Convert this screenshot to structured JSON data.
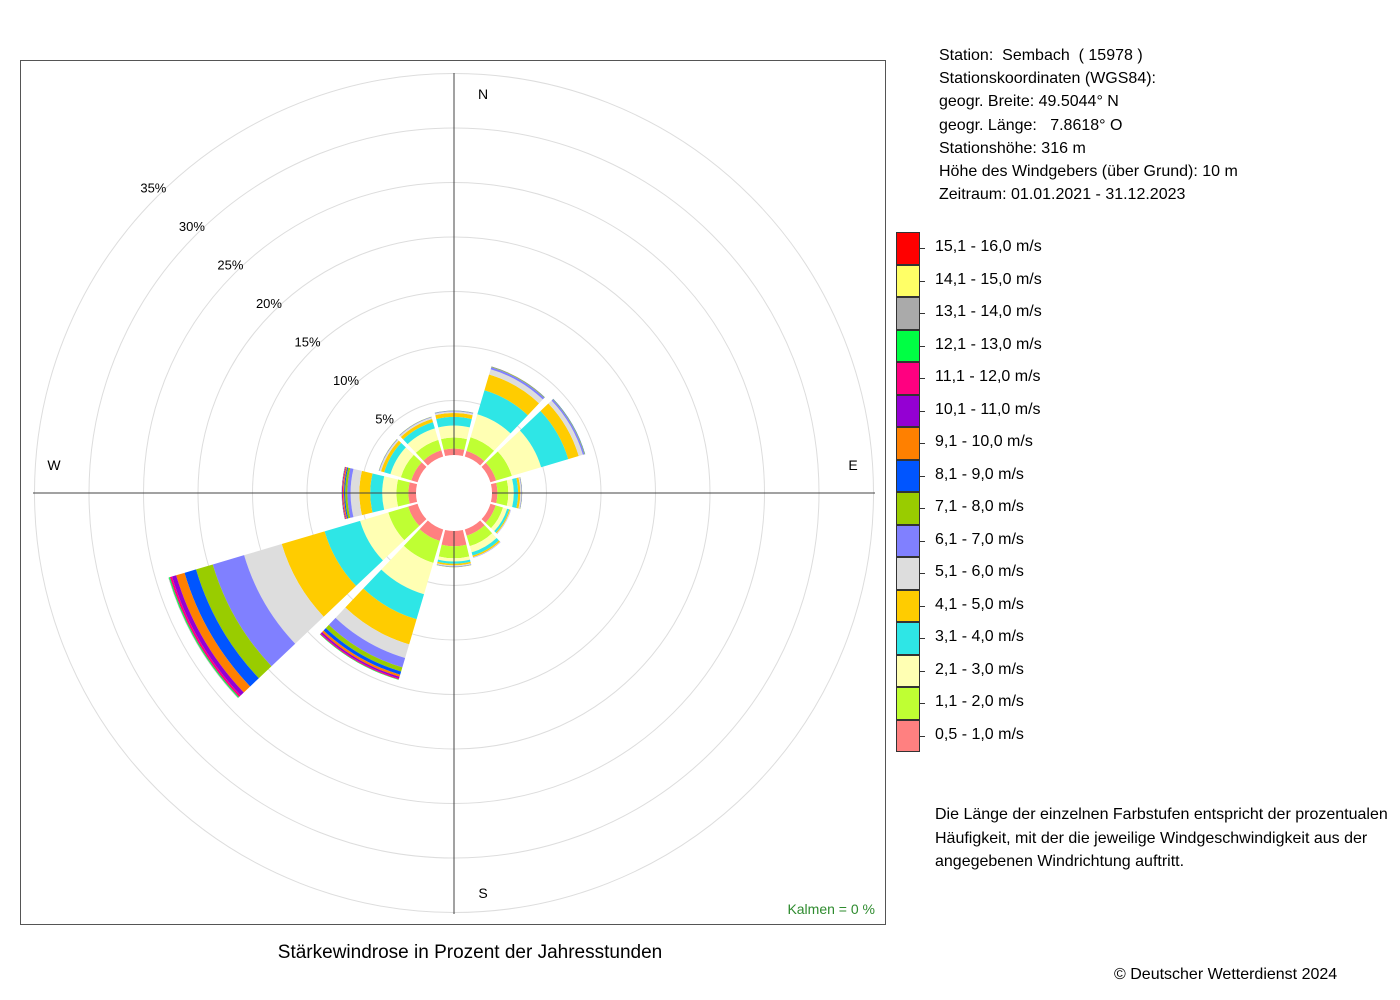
{
  "station": {
    "lines": [
      "Station:  Sembach  ( 15978 )",
      "Stationskoordinaten (WGS84):",
      "geogr. Breite: 49.5044° N",
      "geogr. Länge:   7.8618° O",
      "Stationshöhe: 316 m",
      "Höhe des Windgebers (über Grund): 10 m",
      "Zeitraum: 01.01.2021 - 31.12.2023"
    ]
  },
  "title": "Stärkewindrose in Prozent der Jahresstunden",
  "kalmen": "Kalmen  =  0 %",
  "note": "Die Länge der einzelnen Farbstufen entspricht der prozentualen Häufigkeit, mit der die jeweilige Windgeschwindigkeit aus der angegebenen Windrichtung auftritt.",
  "copyright": "© Deutscher Wetterdienst  2024",
  "legend": [
    {
      "label": "15,1 - 16,0 m/s",
      "color": "#ff0000"
    },
    {
      "label": "14,1 - 15,0 m/s",
      "color": "#ffff66"
    },
    {
      "label": "13,1 - 14,0 m/s",
      "color": "#aaaaaa"
    },
    {
      "label": "12,1 - 13,0 m/s",
      "color": "#00ff44"
    },
    {
      "label": "11,1 - 12,0 m/s",
      "color": "#ff0080"
    },
    {
      "label": "10,1 - 11,0 m/s",
      "color": "#9400d3"
    },
    {
      "label": "9,1 - 10,0 m/s",
      "color": "#ff8000"
    },
    {
      "label": "8,1 - 9,0 m/s",
      "color": "#0055ff"
    },
    {
      "label": "7,1 - 8,0 m/s",
      "color": "#99cc00"
    },
    {
      "label": "6,1 - 7,0 m/s",
      "color": "#8080ff"
    },
    {
      "label": "5,1 - 6,0 m/s",
      "color": "#dddddd"
    },
    {
      "label": "4,1 - 5,0 m/s",
      "color": "#ffcc00"
    },
    {
      "label": "3,1 - 4,0 m/s",
      "color": "#2ee6e6"
    },
    {
      "label": "2,1 - 3,0 m/s",
      "color": "#ffffb3"
    },
    {
      "label": "1,1 - 2,0 m/s",
      "color": "#bfff33"
    },
    {
      "label": "0,5 - 1,0 m/s",
      "color": "#ff8080"
    }
  ],
  "chart_data": {
    "type": "windrose",
    "title": "Stärkewindrose in Prozent der Jahresstunden",
    "radial_ticks": [
      "5%",
      "10%",
      "15%",
      "20%",
      "25%",
      "30%",
      "35%"
    ],
    "radial_max": 35,
    "directions": [
      "N",
      "E",
      "S",
      "W"
    ],
    "sector_directions_deg": [
      0,
      30,
      60,
      90,
      120,
      150,
      180,
      210,
      240,
      270,
      300,
      330
    ],
    "speed_classes": [
      "0,5 - 1,0 m/s",
      "1,1 - 2,0 m/s",
      "2,1 - 3,0 m/s",
      "3,1 - 4,0 m/s",
      "4,1 - 5,0 m/s",
      "5,1 - 6,0 m/s",
      "6,1 - 7,0 m/s",
      "7,1 - 8,0 m/s",
      "8,1 - 9,0 m/s",
      "9,1 - 10,0 m/s",
      "10,1 - 11,0 m/s",
      "11,1 - 12,0 m/s",
      "12,1 - 13,0 m/s",
      "13,1 - 14,0 m/s",
      "14,1 - 15,0 m/s",
      "15,1 - 16,0 m/s"
    ],
    "sectors": [
      {
        "dir": 0,
        "values": [
          0.6,
          1.0,
          1.1,
          0.8,
          0.35,
          0.15,
          0.05,
          0.02,
          0.01,
          0,
          0,
          0,
          0,
          0,
          0,
          0
        ]
      },
      {
        "dir": 30,
        "values": [
          0.55,
          1.3,
          2.2,
          2.3,
          1.5,
          0.5,
          0.2,
          0.05,
          0.02,
          0.01,
          0,
          0,
          0,
          0,
          0,
          0
        ]
      },
      {
        "dir": 60,
        "values": [
          0.55,
          1.5,
          2.8,
          2.6,
          1.0,
          0.4,
          0.15,
          0.05,
          0.02,
          0,
          0,
          0,
          0,
          0,
          0,
          0
        ]
      },
      {
        "dir": 90,
        "values": [
          0.5,
          1.0,
          0.5,
          0.4,
          0.2,
          0.1,
          0.05,
          0.02,
          0,
          0,
          0,
          0,
          0,
          0,
          0,
          0
        ]
      },
      {
        "dir": 120,
        "values": [
          0.5,
          0.7,
          0.4,
          0.2,
          0.1,
          0.05,
          0.02,
          0,
          0,
          0,
          0,
          0,
          0,
          0,
          0,
          0
        ]
      },
      {
        "dir": 150,
        "values": [
          0.6,
          1.0,
          0.6,
          0.3,
          0.15,
          0.05,
          0.02,
          0,
          0,
          0,
          0,
          0,
          0,
          0,
          0,
          0
        ]
      },
      {
        "dir": 180,
        "values": [
          1.4,
          1.1,
          0.3,
          0.2,
          0.15,
          0.1,
          0.05,
          0.02,
          0,
          0,
          0,
          0,
          0,
          0,
          0,
          0
        ]
      },
      {
        "dir": 210,
        "values": [
          1.1,
          2.1,
          3.0,
          2.4,
          2.4,
          1.3,
          0.9,
          0.4,
          0.3,
          0.2,
          0.15,
          0.1,
          0.05,
          0,
          0,
          0
        ]
      },
      {
        "dir": 240,
        "values": [
          0.9,
          1.9,
          2.7,
          3.4,
          4.1,
          3.6,
          3.0,
          1.6,
          1.1,
          0.8,
          0.4,
          0.2,
          0.1,
          0.05,
          0,
          0
        ]
      },
      {
        "dir": 270,
        "values": [
          0.7,
          1.1,
          1.3,
          1.1,
          1.0,
          0.8,
          0.3,
          0.2,
          0.1,
          0.1,
          0.05,
          0.05,
          0.02,
          0,
          0,
          0
        ]
      },
      {
        "dir": 300,
        "values": [
          0.6,
          1.0,
          1.0,
          0.6,
          0.3,
          0.15,
          0.05,
          0.02,
          0,
          0,
          0,
          0,
          0,
          0,
          0,
          0
        ]
      },
      {
        "dir": 330,
        "values": [
          0.6,
          1.0,
          1.1,
          0.6,
          0.3,
          0.15,
          0.05,
          0.02,
          0,
          0,
          0,
          0,
          0,
          0,
          0,
          0
        ]
      }
    ],
    "calm_percent": 0,
    "grid": true
  }
}
